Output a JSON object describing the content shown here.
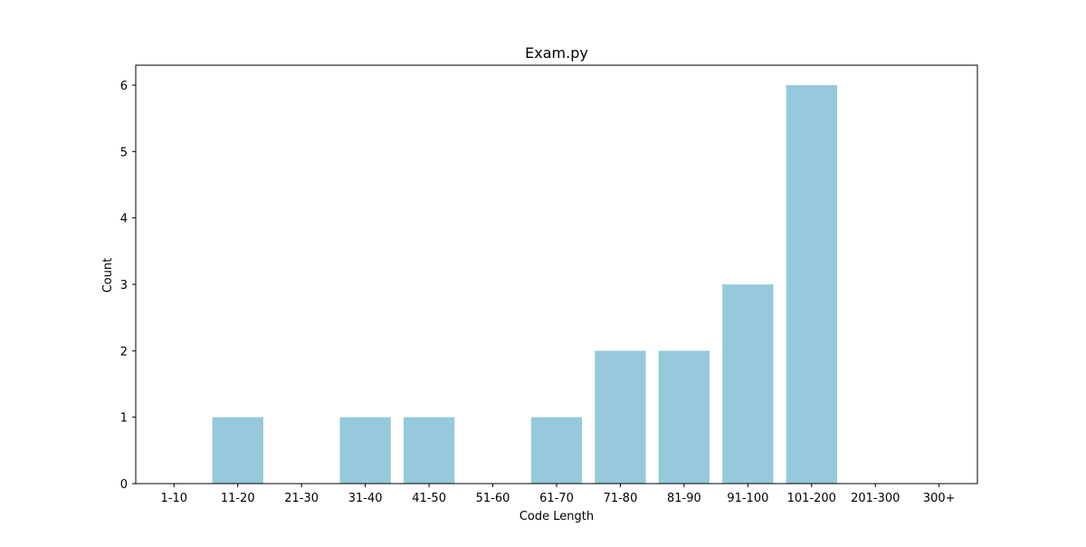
{
  "chart_data": {
    "type": "bar",
    "title": "Exam.py",
    "xlabel": "Code Length",
    "ylabel": "Count",
    "categories": [
      "1-10",
      "11-20",
      "21-30",
      "31-40",
      "41-50",
      "51-60",
      "61-70",
      "71-80",
      "81-90",
      "91-100",
      "101-200",
      "201-300",
      "300+"
    ],
    "values": [
      0,
      1,
      0,
      1,
      1,
      0,
      1,
      2,
      2,
      3,
      6,
      0,
      0
    ],
    "ylim": [
      0,
      6.3
    ],
    "yticks": [
      0,
      1,
      2,
      3,
      4,
      5,
      6
    ],
    "grid": false,
    "legend": "none",
    "bar_color": "#96c9dc"
  }
}
